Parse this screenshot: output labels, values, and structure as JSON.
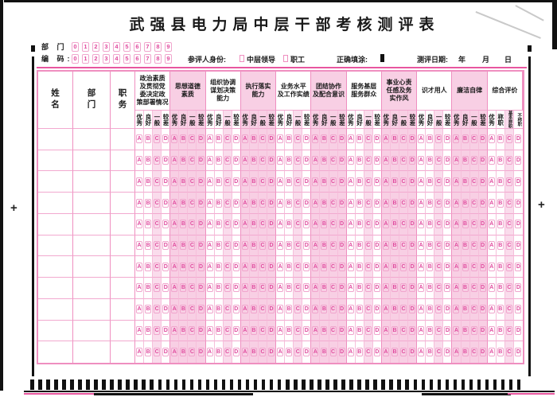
{
  "title": "武强县电力局中层干部考核测评表",
  "top_fields": {
    "department_label": "部 门",
    "code_label": "编 码:",
    "digits": [
      "0",
      "1",
      "2",
      "3",
      "4",
      "5",
      "6",
      "7",
      "8",
      "9"
    ]
  },
  "info_row": {
    "identity_label": "参评人身份:",
    "identity_options": [
      "中层领导",
      "职工"
    ],
    "fill_example_label": "正确填涂:",
    "date_label": "测评日期:",
    "date_units": [
      "年",
      "月",
      "日"
    ]
  },
  "table": {
    "fixed_columns": [
      "姓名",
      "部门",
      "职务"
    ],
    "categories": [
      {
        "label": "政治素质\n及贯彻党\n委决定政\n策部署情况",
        "shaded": false
      },
      {
        "label": "思想道德\n素质",
        "shaded": true
      },
      {
        "label": "组织协调\n谋划决策\n能力",
        "shaded": false
      },
      {
        "label": "执行落实\n能力",
        "shaded": true
      },
      {
        "label": "业务水平\n及工作实绩",
        "shaded": false
      },
      {
        "label": "团结协作\n及配合意识",
        "shaded": true
      },
      {
        "label": "服务基层\n服务群众",
        "shaded": false
      },
      {
        "label": "事业心责\n任感及务\n实作风",
        "shaded": true
      },
      {
        "label": "识才用人",
        "shaded": false
      },
      {
        "label": "廉洁自律",
        "shaded": true
      },
      {
        "label": "综合评价",
        "shaded": false
      }
    ],
    "standard_ratings": [
      "优秀",
      "良好",
      "一般",
      "较差"
    ],
    "overall_ratings": [
      "优秀",
      "称职",
      "基本称职",
      "不称职"
    ],
    "bubble_letters": [
      "A",
      "B",
      "C",
      "D"
    ],
    "data_row_count": 11
  },
  "decorations": {
    "timing_mark_count": 62,
    "registration_mark": "+"
  },
  "colors": {
    "magenta_print": "#e04a9e",
    "pink_fill": "#f8cfe4",
    "pink_border": "#ef8fc0",
    "black_ink": "#1a1a1a"
  }
}
